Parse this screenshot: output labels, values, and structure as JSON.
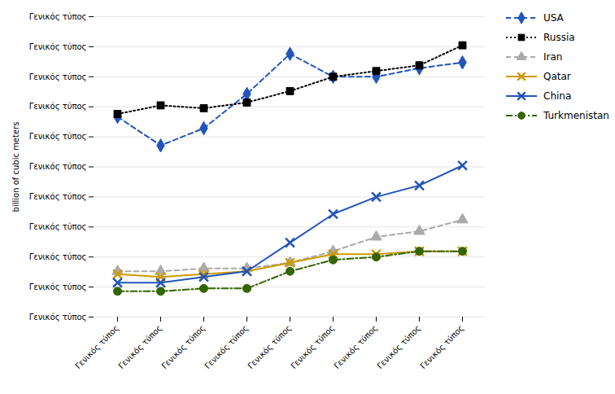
{
  "chart_data": {
    "type": "line",
    "title": "",
    "ylabel": "billion of cubic meters",
    "categories": [
      "Γενικός τύπος",
      "Γενικός τύπος",
      "Γενικός τύπος",
      "Γενικός τύπος",
      "Γενικός τύπος",
      "Γενικός τύπος",
      "Γενικός τύπος",
      "Γενικός τύπος",
      "Γενικός τύπος"
    ],
    "series": [
      {
        "name": "USA",
        "color": "#2255bb",
        "marker": "diamond",
        "line_style": "dashed",
        "values": [
          7.0,
          6.0,
          6.6,
          7.8,
          9.2,
          8.4,
          8.4,
          8.7,
          8.9
        ]
      },
      {
        "name": "Russia",
        "color": "black",
        "marker": "square",
        "line_style": "dotted",
        "values": [
          7.1,
          7.4,
          7.3,
          7.5,
          7.9,
          8.4,
          8.6,
          8.8,
          9.5
        ]
      },
      {
        "name": "Iran",
        "color": "#aaaaaa",
        "marker": "triangle",
        "line_style": "dashed",
        "values": [
          1.6,
          1.6,
          1.7,
          1.7,
          1.9,
          2.3,
          2.8,
          3.0,
          3.4
        ]
      },
      {
        "name": "Qatar",
        "color": "#cc9900",
        "marker": "x",
        "line_style": "solid",
        "values": [
          1.5,
          1.4,
          1.5,
          1.6,
          1.9,
          2.2,
          2.2,
          2.3,
          2.3
        ]
      },
      {
        "name": "China",
        "color": "#2255bb",
        "marker": "x",
        "line_style": "solid",
        "values": [
          1.2,
          1.2,
          1.4,
          1.6,
          2.6,
          3.6,
          4.2,
          4.6,
          5.3
        ]
      },
      {
        "name": "Turkmenistan",
        "color": "#336600",
        "marker": "circle",
        "line_style": "dashdot",
        "values": [
          0.9,
          0.9,
          1.0,
          1.0,
          1.6,
          2.0,
          2.1,
          2.3,
          2.3
        ]
      }
    ],
    "ylim": [
      0,
      10.5
    ],
    "yticks": [
      {
        "value": 0,
        "label": "Γενικός τύπος"
      },
      {
        "value": 1.05,
        "label": "Γενικός τύπος"
      },
      {
        "value": 2.1,
        "label": "Γενικός τύπος"
      },
      {
        "value": 3.15,
        "label": "Γενικός τύπος"
      },
      {
        "value": 4.2,
        "label": "Γενικός τύπος"
      },
      {
        "value": 5.25,
        "label": "Γενικός τύπος"
      },
      {
        "value": 6.3,
        "label": "Γενικός τύπος"
      },
      {
        "value": 7.35,
        "label": "Γενικός τύπος"
      },
      {
        "value": 8.4,
        "label": "Γενικός τύπος"
      },
      {
        "value": 9.45,
        "label": "Γενικός τύπος"
      },
      {
        "value": 10.5,
        "label": "Γενικός τύπος"
      }
    ],
    "grid": true,
    "legend": "right"
  }
}
